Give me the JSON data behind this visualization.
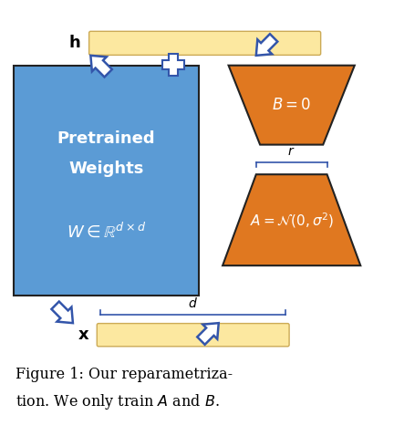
{
  "fig_width": 4.32,
  "fig_height": 4.78,
  "dpi": 100,
  "bg_color": "#ffffff",
  "blue_color": "#5b9bd5",
  "orange_color": "#e07820",
  "yellow_color": "#fce8a0",
  "yellow_edge": "#ccaa55",
  "arrow_color": "#3355aa",
  "text_white": "#ffffff",
  "text_black": "#000000",
  "caption_line1": "Figure 1: Our reparametriza-",
  "caption_line2": "tion. We only train $A$ and $B$.",
  "pretrained_label1": "Pretrained",
  "pretrained_label2": "Weights",
  "pretrained_math": "$W \\in \\mathbb{R}^{d\\times d}$",
  "B_label": "$B = 0$",
  "A_label": "$A = \\mathcal{N}(0, \\sigma^2)$",
  "h_label": "h",
  "x_label": "x",
  "r_label": "$r$",
  "d_label": "$d$",
  "xlim": [
    0,
    10
  ],
  "ylim": [
    0,
    11
  ]
}
